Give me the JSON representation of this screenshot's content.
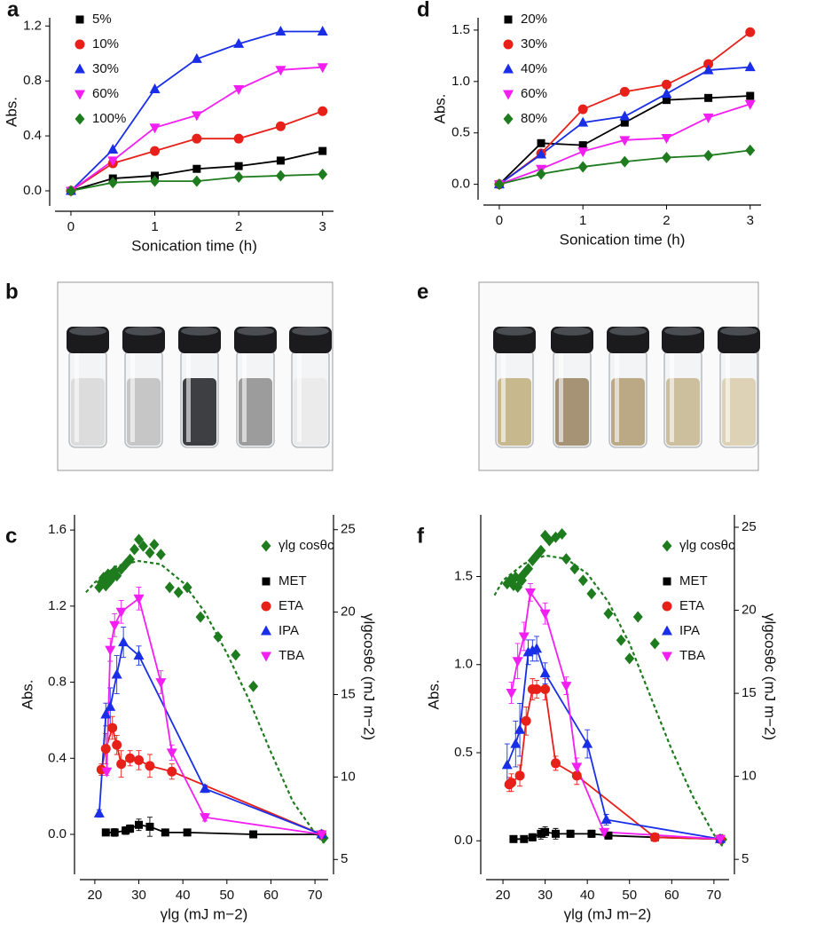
{
  "chart_data": [
    {
      "type": "line",
      "panel": "a",
      "xlabel": "Sonication time (h)",
      "ylabel": "Abs.",
      "x": [
        0,
        0.5,
        1,
        1.5,
        2,
        2.5,
        3
      ],
      "xlim": [
        -0.19,
        3.13
      ],
      "xticks": [
        0,
        1,
        2,
        3
      ],
      "ylim": [
        -0.11,
        1.26
      ],
      "yticks": [
        {
          "value": 0,
          "label": "0.0"
        },
        0.4,
        0.8,
        1.2
      ],
      "legend": "upper left",
      "series": [
        {
          "name": "5%",
          "color": "#000000",
          "marker": "square",
          "values": [
            0,
            0.09,
            0.11,
            0.16,
            0.18,
            0.22,
            0.29
          ]
        },
        {
          "name": "10%",
          "color": "#e8201a",
          "marker": "circle",
          "values": [
            0,
            0.2,
            0.29,
            0.38,
            0.38,
            0.47,
            0.58
          ]
        },
        {
          "name": "30%",
          "color": "#1a2ee8",
          "marker": "triangle-up",
          "values": [
            0,
            0.3,
            0.74,
            0.96,
            1.07,
            1.16,
            1.16
          ]
        },
        {
          "name": "60%",
          "color": "#f21ef2",
          "marker": "triangle-down",
          "values": [
            0,
            0.22,
            0.46,
            0.55,
            0.74,
            0.88,
            0.9
          ]
        },
        {
          "name": "100%",
          "color": "#1e7b1e",
          "marker": "diamond",
          "values": [
            0,
            0.06,
            0.07,
            0.07,
            0.1,
            0.11,
            0.12
          ]
        }
      ]
    },
    {
      "type": "line",
      "panel": "c",
      "xlabel": "γlg (mJ m−2)",
      "ylabel": "Abs.",
      "y2label": "γlgcosθc (mJ m−2)",
      "xlim": [
        16.6,
        73
      ],
      "xticks": [
        20,
        30,
        40,
        50,
        60,
        70
      ],
      "ylim": [
        -0.21,
        1.68
      ],
      "yticks": [
        {
          "value": 0,
          "label": "0.0"
        },
        0.4,
        0.8,
        1.2,
        1.6
      ],
      "y2lim": [
        4.1,
        25.9
      ],
      "y2ticks": [
        5,
        10,
        15,
        20,
        25
      ],
      "legend": "upper right",
      "series": [
        {
          "name": "γlg cosθc",
          "color": "#1e7b1e",
          "marker": "diamond",
          "mode": "markers",
          "axis": "y2",
          "x": [
            21,
            21.5,
            22,
            22.5,
            23,
            23.5,
            24,
            24.5,
            25,
            26,
            27,
            28,
            29,
            30,
            31,
            32.5,
            33.5,
            35,
            37,
            39,
            41,
            44,
            48,
            52,
            56,
            72
          ],
          "values": [
            21.5,
            21.8,
            22.1,
            21.6,
            22.3,
            21.9,
            22.1,
            22.5,
            22.2,
            22.6,
            22.9,
            23.2,
            23.8,
            24.4,
            24.0,
            23.6,
            24.1,
            23.5,
            21.5,
            21.2,
            21.5,
            19.7,
            18.5,
            17.4,
            15.5,
            6.3
          ]
        },
        {
          "color": "#1e7b1e",
          "mode": "line",
          "dash": true,
          "axis": "y2",
          "x": [
            18,
            20,
            25,
            30,
            35,
            40,
            45,
            50,
            55,
            60,
            65,
            70,
            72
          ],
          "values": [
            21.2,
            21.8,
            22.8,
            23.1,
            22.9,
            21.8,
            20.0,
            17.5,
            14.7,
            11.5,
            8.5,
            6.6,
            6.0
          ]
        },
        {
          "name": "MET",
          "color": "#000000",
          "marker": "square",
          "x": [
            22.5,
            24.5,
            27,
            28,
            30,
            32.5,
            36,
            41,
            56,
            71.5
          ],
          "values": [
            0.01,
            0.01,
            0.02,
            0.03,
            0.05,
            0.04,
            0.01,
            0.01,
            0,
            0
          ],
          "errors": [
            0.01,
            0.02,
            0.02,
            0.02,
            0.03,
            0.05,
            0.01,
            0.01,
            0.01,
            0.01
          ]
        },
        {
          "name": "ETA",
          "color": "#e8201a",
          "marker": "circle",
          "x": [
            21.5,
            22.5,
            24,
            25,
            26,
            28,
            30,
            32.5,
            37.5,
            71.5
          ],
          "values": [
            0.34,
            0.45,
            0.56,
            0.47,
            0.37,
            0.4,
            0.39,
            0.36,
            0.33,
            0
          ],
          "errors": [
            0.03,
            0.08,
            0.06,
            0.05,
            0.07,
            0.04,
            0.05,
            0.06,
            0.04,
            0.01
          ]
        },
        {
          "name": "IPA",
          "color": "#1a2ee8",
          "marker": "triangle-up",
          "x": [
            21,
            22.5,
            23.5,
            25,
            26.5,
            30,
            45,
            71.5
          ],
          "values": [
            0.11,
            0.63,
            0.67,
            0.84,
            1.01,
            0.94,
            0.24,
            0
          ],
          "errors": [
            0.02,
            0.06,
            0.1,
            0.1,
            0.08,
            0.05,
            0.02,
            0.01
          ]
        },
        {
          "name": "TBA",
          "color": "#f21ef2",
          "marker": "triangle-down",
          "x": [
            22.7,
            23.5,
            24.5,
            26,
            30,
            35,
            37.5,
            45,
            71.5
          ],
          "values": [
            0.33,
            0.97,
            1.1,
            1.17,
            1.24,
            0.8,
            0.43,
            0.09,
            0
          ],
          "errors": [
            0.02,
            0.06,
            0.06,
            0.06,
            0.06,
            0.06,
            0.04,
            0.02,
            0.01
          ]
        }
      ]
    },
    {
      "type": "line",
      "panel": "d",
      "xlabel": "Sonication time (h)",
      "ylabel": "Abs.",
      "x": [
        0,
        0.5,
        1,
        1.5,
        2,
        2.5,
        3
      ],
      "xlim": [
        -0.19,
        3.13
      ],
      "xticks": [
        0,
        1,
        2,
        3
      ],
      "ylim": [
        -0.15,
        1.62
      ],
      "yticks": [
        {
          "value": 0,
          "label": "0.0"
        },
        0.5,
        {
          "value": 1,
          "label": "1.0"
        },
        1.5
      ],
      "legend": "upper left",
      "series": [
        {
          "name": "20%",
          "color": "#000000",
          "marker": "square",
          "values": [
            0,
            0.4,
            0.38,
            0.6,
            0.82,
            0.84,
            0.86
          ]
        },
        {
          "name": "30%",
          "color": "#e8201a",
          "marker": "circle",
          "values": [
            0,
            0.3,
            0.73,
            0.9,
            0.97,
            1.17,
            1.48
          ]
        },
        {
          "name": "40%",
          "color": "#1a2ee8",
          "marker": "triangle-up",
          "values": [
            0,
            0.29,
            0.6,
            0.66,
            0.88,
            1.11,
            1.14
          ]
        },
        {
          "name": "60%",
          "color": "#f21ef2",
          "marker": "triangle-down",
          "values": [
            0,
            0.15,
            0.32,
            0.43,
            0.45,
            0.65,
            0.78
          ]
        },
        {
          "name": "80%",
          "color": "#1e7b1e",
          "marker": "diamond",
          "values": [
            0,
            0.1,
            0.17,
            0.22,
            0.26,
            0.28,
            0.33
          ]
        }
      ]
    },
    {
      "type": "line",
      "panel": "f",
      "xlabel": "γlg (mJ m−2)",
      "ylabel": "Abs.",
      "y2label": "γlgcosθc (mJ m−2)",
      "xlim": [
        16.0,
        73.6
      ],
      "xticks": [
        20,
        30,
        40,
        50,
        60,
        70
      ],
      "ylim": [
        -0.19,
        1.85
      ],
      "yticks": [
        {
          "value": 0,
          "label": "0.0"
        },
        0.5,
        {
          "value": 1,
          "label": "1.0"
        },
        1.5
      ],
      "y2lim": [
        4.1,
        25.75
      ],
      "y2ticks": [
        5,
        10,
        15,
        20,
        25
      ],
      "legend": "upper right",
      "series": [
        {
          "name": "γlg cosθc",
          "color": "#1e7b1e",
          "marker": "diamond",
          "mode": "markers",
          "axis": "y2",
          "x": [
            21,
            22,
            22.5,
            23,
            23.5,
            24,
            24.5,
            25,
            26,
            27,
            28,
            29,
            30,
            31,
            32.5,
            34,
            35,
            37,
            39,
            41,
            45,
            48,
            50,
            52,
            56,
            72
          ],
          "values": [
            21.6,
            21.9,
            21.5,
            22.0,
            21.4,
            21.9,
            21.8,
            22.2,
            22.5,
            23.0,
            23.3,
            23.6,
            24.5,
            24.2,
            24.4,
            24.6,
            23.1,
            22.5,
            21.8,
            21.0,
            19.8,
            18.2,
            17.1,
            19.6,
            18.0,
            6.2
          ]
        },
        {
          "color": "#1e7b1e",
          "mode": "line",
          "dash": true,
          "axis": "y2",
          "x": [
            18,
            20,
            25,
            30,
            35,
            40,
            45,
            50,
            55,
            60,
            65,
            70,
            72
          ],
          "values": [
            20.9,
            21.8,
            22.8,
            23.3,
            23.1,
            22.2,
            20.5,
            18.0,
            14.8,
            11.6,
            8.8,
            6.5,
            5.8
          ]
        },
        {
          "name": "MET",
          "color": "#000000",
          "marker": "square",
          "x": [
            22.5,
            25,
            27,
            29,
            30,
            32.5,
            36,
            41,
            45,
            56,
            71.5
          ],
          "values": [
            0.01,
            0.01,
            0.02,
            0.04,
            0.05,
            0.04,
            0.04,
            0.04,
            0.03,
            0.02,
            0.01
          ],
          "errors": [
            0.01,
            0.01,
            0.02,
            0.03,
            0.03,
            0.03,
            0.02,
            0.02,
            0.02,
            0.01,
            0.01
          ]
        },
        {
          "name": "ETA",
          "color": "#e8201a",
          "marker": "circle",
          "x": [
            21.5,
            22,
            24,
            25.5,
            27,
            28,
            30,
            32.5,
            37.5,
            56,
            71.5
          ],
          "values": [
            0.32,
            0.33,
            0.37,
            0.68,
            0.86,
            0.86,
            0.86,
            0.44,
            0.37,
            0.02,
            0.01
          ],
          "errors": [
            0.04,
            0.05,
            0.06,
            0.08,
            0.06,
            0.05,
            0.06,
            0.04,
            0.05,
            0.02,
            0.01
          ]
        },
        {
          "name": "IPA",
          "color": "#1a2ee8",
          "marker": "triangle-up",
          "x": [
            21,
            23,
            24,
            26,
            27,
            28,
            30,
            40,
            44.5,
            71.5
          ],
          "values": [
            0.43,
            0.55,
            0.63,
            1.07,
            1.08,
            1.09,
            0.95,
            0.55,
            0.12,
            0.01
          ],
          "errors": [
            0.12,
            0.13,
            0.15,
            0.07,
            0.06,
            0.07,
            0.06,
            0.08,
            0.03,
            0.01
          ]
        },
        {
          "name": "TBA",
          "color": "#f21ef2",
          "marker": "triangle-down",
          "x": [
            22,
            23.5,
            25,
            26.5,
            30,
            35,
            37.5,
            44,
            71.5
          ],
          "values": [
            0.84,
            1.02,
            1.16,
            1.41,
            1.29,
            0.88,
            0.42,
            0.05,
            0.01
          ],
          "errors": [
            0.06,
            0.1,
            0.08,
            0.05,
            0.06,
            0.05,
            0.05,
            0.02,
            0.01
          ]
        }
      ]
    }
  ],
  "photos": [
    {
      "panel": "b"
    },
    {
      "panel": "e"
    }
  ]
}
